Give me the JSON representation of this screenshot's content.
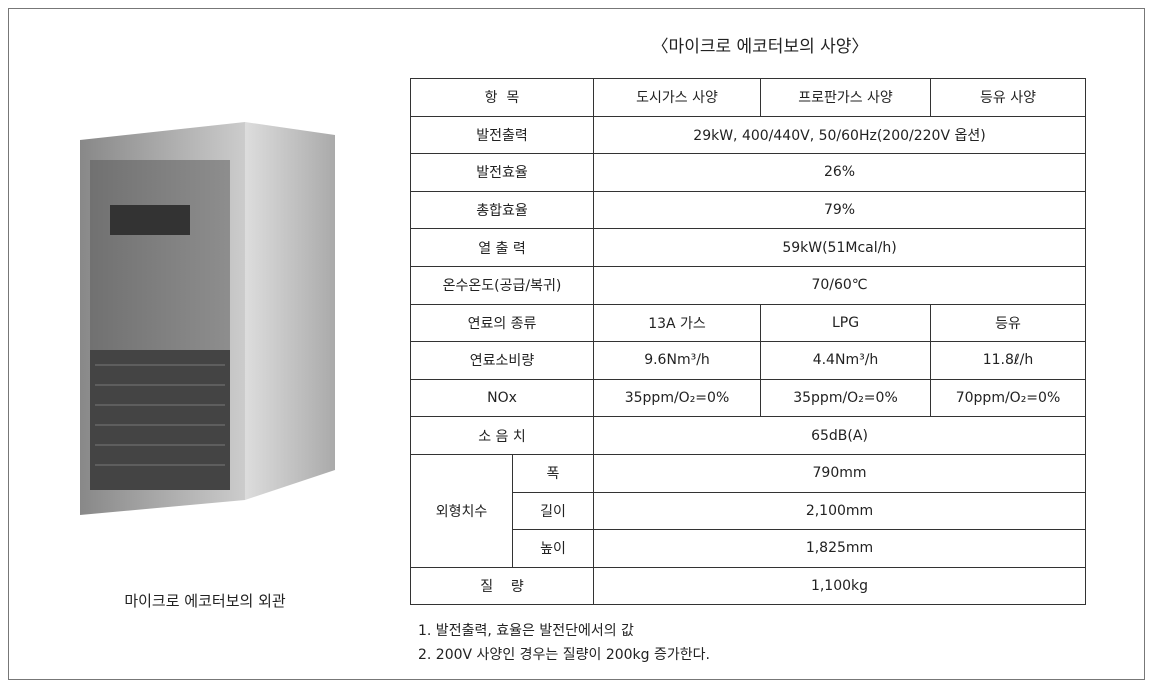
{
  "title": "〈마이크로 에코터보의 사양〉",
  "image_caption": "마이크로 에코터보의 외관",
  "table": {
    "header": [
      "항  목",
      "도시가스 사양",
      "프로판가스 사양",
      "등유 사양"
    ],
    "rows": [
      [
        "발전출력",
        "29kW, 400/440V, 50/60Hz(200/220V 옵션)"
      ],
      [
        "발전효율",
        "26%"
      ],
      [
        "총합효율",
        "79%"
      ],
      [
        "열 출 력",
        "59kW(51Mcal/h)"
      ],
      [
        "온수온도(공급/복귀)",
        "70/60℃"
      ],
      [
        "연료의 종류",
        "13A 가스",
        "LPG",
        "등유"
      ],
      [
        "연료소비량",
        "9.6Nm³/h",
        "4.4Nm³/h",
        "11.8ℓ/h"
      ],
      [
        "NOx",
        "35ppm/O₂=0%",
        "35ppm/O₂=0%",
        "70ppm/O₂=0%"
      ],
      [
        "소 음 치",
        "65dB(A)"
      ],
      [
        "외형치수",
        "폭",
        "790mm"
      ],
      [
        "길이",
        "2,100mm"
      ],
      [
        "높이",
        "1,825mm"
      ],
      [
        "질    량",
        "1,100kg"
      ]
    ]
  },
  "notes": [
    "1. 발전출력, 효율은 발전단에서의 값",
    "2. 200V 사양인 경우는 질량이 200kg 증가한다."
  ]
}
